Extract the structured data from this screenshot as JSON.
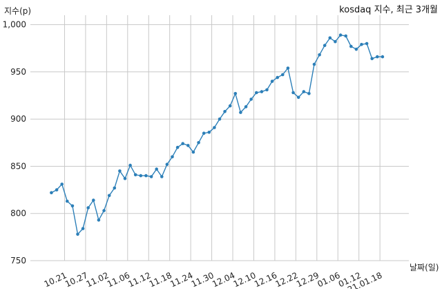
{
  "chart_data": {
    "type": "line",
    "title": "kosdaq 지수, 최근 3개월",
    "xlabel": "날짜(일)",
    "ylabel": "지수(p)",
    "ylim": [
      750,
      1010
    ],
    "yticks": [
      750,
      800,
      850,
      900,
      950,
      1000
    ],
    "ytick_labels": [
      "750",
      "800",
      "850",
      "900",
      "950",
      "1,000"
    ],
    "grid": true,
    "xtick_labels": [
      "10.21",
      "10.27",
      "11.02",
      "11.06",
      "11.12",
      "11.18",
      "11.24",
      "11.30",
      "12.04",
      "12.10",
      "12.16",
      "12.22",
      "12.29",
      "01.06",
      "01.12",
      "21.01.18"
    ],
    "xtick_positions": [
      2.5,
      6.5,
      10.5,
      14.5,
      18.5,
      22.5,
      26.5,
      30.5,
      34.5,
      38.5,
      42.5,
      46.5,
      50.5,
      54.5,
      58.5,
      62.5
    ],
    "x": [
      0,
      1,
      2,
      3,
      4,
      5,
      6,
      7,
      8,
      9,
      10,
      11,
      12,
      13,
      14,
      15,
      16,
      17,
      18,
      19,
      20,
      21,
      22,
      23,
      24,
      25,
      26,
      27,
      28,
      29,
      30,
      31,
      32,
      33,
      34,
      35,
      36,
      37,
      38,
      39,
      40,
      41,
      42,
      43,
      44,
      45,
      46,
      47,
      48,
      49,
      50,
      51,
      52,
      53,
      54,
      55,
      56,
      57,
      58,
      59,
      60,
      61,
      62,
      63
    ],
    "values": [
      822,
      825,
      831,
      813,
      808,
      778,
      784,
      806,
      814,
      793,
      803,
      819,
      827,
      845,
      837,
      851,
      841,
      840,
      840,
      839,
      847,
      839,
      852,
      860,
      870,
      874,
      872,
      865,
      875,
      885,
      886,
      891,
      900,
      908,
      914,
      927,
      907,
      913,
      921,
      928,
      929,
      931,
      940,
      944,
      947,
      954,
      928,
      923,
      929,
      927,
      958,
      968,
      978,
      986,
      982,
      989,
      988,
      977,
      974,
      979,
      980,
      964,
      966,
      966
    ]
  }
}
